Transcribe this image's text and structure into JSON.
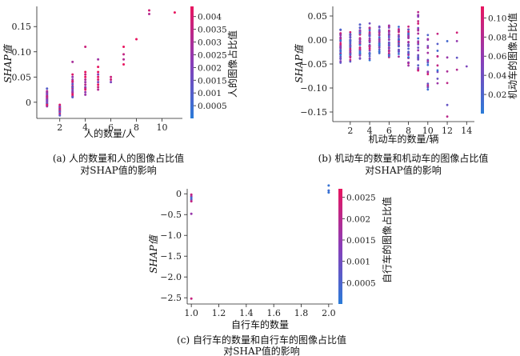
{
  "chart_data": [
    {
      "type": "scatter",
      "xlabel": "人的数量/人",
      "ylabel": "SHAP值",
      "colorbar_label": "人的图像占比值",
      "xlim": [
        0.2,
        11.6
      ],
      "ylim": [
        -0.032,
        0.19
      ],
      "xticks": [
        2,
        4,
        6,
        8,
        10
      ],
      "yticks": [
        0,
        0.05,
        0.1,
        0.15
      ],
      "ytick_labels": [
        "0",
        "0.05",
        "0.10",
        "0.15"
      ],
      "cbar_range": [
        0,
        0.0044
      ],
      "cbar_ticks": [
        0.0005,
        0.001,
        0.0015,
        0.002,
        0.0025,
        0.003,
        0.0035,
        0.004
      ],
      "caption_line1": "(a) 人的数量和人的图像占比值",
      "caption_line2": "对SHAP值的影响",
      "points": [
        [
          1,
          0.027
        ],
        [
          1,
          0.022
        ],
        [
          1,
          0.018
        ],
        [
          1,
          0.014
        ],
        [
          1,
          0.011
        ],
        [
          1,
          0.008
        ],
        [
          1,
          0.005
        ],
        [
          1,
          0.002
        ],
        [
          1,
          0.0
        ],
        [
          1,
          -0.003
        ],
        [
          1,
          -0.006
        ],
        [
          1,
          -0.008
        ],
        [
          1,
          0.02
        ],
        [
          1,
          0.016
        ],
        [
          1,
          0.012
        ],
        [
          1,
          0.006
        ],
        [
          1,
          0.003
        ],
        [
          1,
          -0.002
        ],
        [
          1,
          -0.005
        ],
        [
          1,
          0.009
        ],
        [
          2,
          -0.005
        ],
        [
          2,
          -0.008
        ],
        [
          2,
          -0.011
        ],
        [
          2,
          -0.014
        ],
        [
          2,
          -0.017
        ],
        [
          2,
          -0.02
        ],
        [
          2,
          -0.023
        ],
        [
          2,
          -0.026
        ],
        [
          2,
          -0.012
        ],
        [
          2,
          -0.018
        ],
        [
          2,
          -0.009
        ],
        [
          2,
          -0.015
        ],
        [
          3,
          0.05
        ],
        [
          3,
          0.045
        ],
        [
          3,
          0.04
        ],
        [
          3,
          0.036
        ],
        [
          3,
          0.032
        ],
        [
          3,
          0.028
        ],
        [
          3,
          0.025
        ],
        [
          3,
          0.022
        ],
        [
          3,
          0.018
        ],
        [
          3,
          0.015
        ],
        [
          3,
          0.012
        ],
        [
          3,
          0.01
        ],
        [
          3,
          0.08
        ],
        [
          3,
          0.055
        ],
        [
          3,
          0.042
        ],
        [
          3,
          0.03
        ],
        [
          3,
          0.02
        ],
        [
          4,
          0.06
        ],
        [
          4,
          0.05
        ],
        [
          4,
          0.045
        ],
        [
          4,
          0.04
        ],
        [
          4,
          0.035
        ],
        [
          4,
          0.03
        ],
        [
          4,
          0.025
        ],
        [
          4,
          0.02
        ],
        [
          4,
          0.015
        ],
        [
          4,
          0.11
        ],
        [
          4,
          0.055
        ],
        [
          4,
          0.028
        ],
        [
          5,
          0.085
        ],
        [
          5,
          0.07
        ],
        [
          5,
          0.06
        ],
        [
          5,
          0.055
        ],
        [
          5,
          0.05
        ],
        [
          5,
          0.04
        ],
        [
          5,
          0.035
        ],
        [
          5,
          0.03
        ],
        [
          5,
          0.025
        ],
        [
          5,
          0.045
        ],
        [
          6,
          0.05
        ],
        [
          6,
          0.045
        ],
        [
          6,
          0.04
        ],
        [
          7,
          0.11
        ],
        [
          7,
          0.095
        ],
        [
          7,
          0.085
        ],
        [
          7,
          0.075
        ],
        [
          8,
          0.125
        ],
        [
          9,
          0.182
        ],
        [
          9,
          0.175
        ],
        [
          11,
          0.178
        ]
      ]
    },
    {
      "type": "scatter",
      "xlabel": "机动车的数量/辆",
      "ylabel": "SHAP值",
      "colorbar_label": "机动车的图像占比值",
      "xlim": [
        0.2,
        14.8
      ],
      "ylim": [
        -0.17,
        0.07
      ],
      "xticks": [
        2,
        4,
        6,
        8,
        10,
        12,
        14
      ],
      "yticks": [
        0.05,
        0.0,
        -0.05,
        -0.1,
        -0.15
      ],
      "ytick_labels": [
        "0.05",
        "0.00",
        "−0.05",
        "−0.10",
        "−0.15"
      ],
      "cbar_range": [
        0,
        0.112
      ],
      "cbar_ticks": [
        0.02,
        0.04,
        0.06,
        0.08,
        0.1
      ],
      "cbar_tick_labels": [
        "0.02",
        "0.04",
        "0.06",
        "0.08",
        "0.10"
      ],
      "caption_line1": "(b) 机动车的数量和机动车的图像占比值",
      "caption_line2": "对SHAP值的影响",
      "points": []
    },
    {
      "type": "scatter",
      "xlabel": "自行车的数量",
      "ylabel": "SHAP值",
      "colorbar_label": "自行车的图像占比值",
      "xlim": [
        0.97,
        2.03
      ],
      "ylim": [
        -2.65,
        0.12
      ],
      "xticks": [
        1.0,
        1.2,
        1.4,
        1.6,
        1.8,
        2.0
      ],
      "xtick_labels": [
        "1.0",
        "1.2",
        "1.4",
        "1.6",
        "1.8",
        "2.0"
      ],
      "yticks": [
        0,
        -0.5,
        -1.0,
        -1.5,
        -2.0,
        -2.5
      ],
      "ytick_labels": [
        "0",
        "−0.5",
        "−1.0",
        "−1.5",
        "−2.0",
        "−2.5"
      ],
      "cbar_range": [
        0,
        0.0027
      ],
      "cbar_ticks": [
        0.0005,
        0.001,
        0.0015,
        0.002,
        0.0025
      ],
      "caption_line1": "(c) 自行车的数量和自行车的图像占比值",
      "caption_line2": "对SHAP值的影响",
      "points": [
        [
          1,
          -0.02
        ],
        [
          1,
          -0.06
        ],
        [
          1,
          -0.1
        ],
        [
          1,
          -0.14
        ],
        [
          1,
          -0.18
        ],
        [
          1,
          -0.48
        ],
        [
          1,
          -2.52
        ],
        [
          2,
          0.2
        ],
        [
          2,
          0.08
        ],
        [
          2,
          0.03
        ]
      ]
    }
  ],
  "colors": {
    "low": "#2a7bd8",
    "mid": "#8a3db8",
    "high": "#e8155f",
    "axis": "#222222"
  }
}
